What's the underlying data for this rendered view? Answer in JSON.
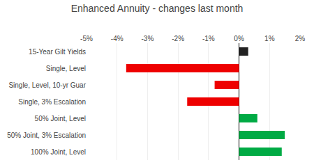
{
  "chart_data": {
    "type": "bar",
    "title": "Enhanced Annuity - changes last month",
    "orientation": "horizontal",
    "categories": [
      "15-Year Gilt Yields",
      "Single, Level",
      "Single, Level, 10-yr Guar",
      "Single, 3% Escalation",
      "50% Joint, Level",
      "50% Joint, 3% Escalation",
      "100% Joint, Level"
    ],
    "values": [
      0.3,
      -3.7,
      -0.8,
      -1.7,
      0.6,
      1.5,
      1.4
    ],
    "colors": [
      "#222222",
      "#ee0000",
      "#ee0000",
      "#ee0000",
      "#00aa44",
      "#00aa44",
      "#00aa44"
    ],
    "xlim": [
      -5,
      2
    ],
    "xticks": [
      {
        "value": -5,
        "label": "-5%"
      },
      {
        "value": -4,
        "label": "-4%"
      },
      {
        "value": -3,
        "label": "-3%"
      },
      {
        "value": -2,
        "label": "-2%"
      },
      {
        "value": -1,
        "label": "-1%"
      },
      {
        "value": 0,
        "label": "0%"
      },
      {
        "value": 1,
        "label": "1%"
      },
      {
        "value": 2,
        "label": "2%"
      }
    ],
    "grid": true
  }
}
